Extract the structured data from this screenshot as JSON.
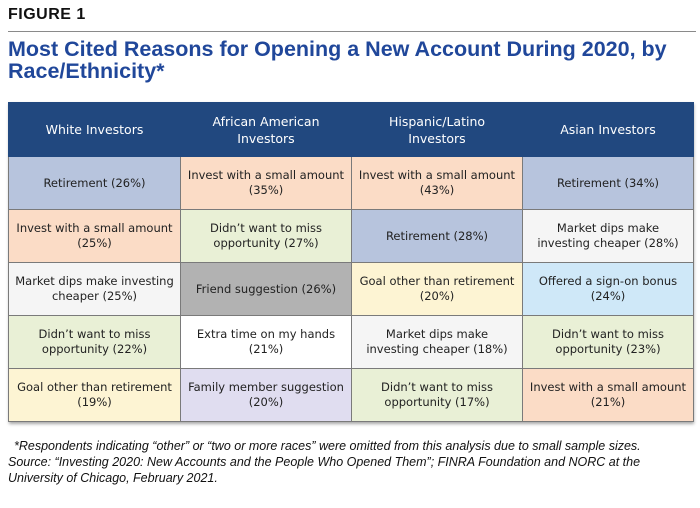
{
  "figure_label": "FIGURE 1",
  "title": "Most Cited Reasons for Opening a New Account During 2020, by Race/Ethnicity*",
  "colors": {
    "header_bg": "#21487f",
    "title": "#20479a",
    "Retirement": "#b7c4dd",
    "Invest with a small amount": "#fbdcc6",
    "Market dips make investing cheaper": "#f5f5f5",
    "Didn't want to miss opportunity": "#e9f0d6",
    "Goal other than retirement": "#fdf4d3",
    "Friend suggestion": "#b2b2b2",
    "Extra time on my hands": "#ffffff",
    "Family member suggestion": "#e0ddf0",
    "Offered a sign-on bonus": "#cfe8f8"
  },
  "chart_data": {
    "type": "table",
    "columns": [
      "White Investors",
      "African American Investors",
      "Hispanic/Latino Investors",
      "Asian Investors"
    ],
    "rows": [
      [
        {
          "reason": "Retirement",
          "pct": 26,
          "label": "Retirement (26%)"
        },
        {
          "reason": "Invest with a small amount",
          "pct": 35,
          "label": "Invest with a small amount (35%)"
        },
        {
          "reason": "Invest with a small amount",
          "pct": 43,
          "label": "Invest with a small amount (43%)"
        },
        {
          "reason": "Retirement",
          "pct": 34,
          "label": "Retirement (34%)"
        }
      ],
      [
        {
          "reason": "Invest with a small amount",
          "pct": 25,
          "label": "Invest with a small amount (25%)"
        },
        {
          "reason": "Didn't want to miss opportunity",
          "pct": 27,
          "label": "Didn’t want to miss opportunity (27%)"
        },
        {
          "reason": "Retirement",
          "pct": 28,
          "label": "Retirement (28%)"
        },
        {
          "reason": "Market dips make investing cheaper",
          "pct": 28,
          "label": "Market dips make investing cheaper (28%)"
        }
      ],
      [
        {
          "reason": "Market dips make investing cheaper",
          "pct": 25,
          "label": "Market dips make investing cheaper (25%)"
        },
        {
          "reason": "Friend suggestion",
          "pct": 26,
          "label": "Friend suggestion (26%)"
        },
        {
          "reason": "Goal other than retirement",
          "pct": 20,
          "label": "Goal other than retirement (20%)"
        },
        {
          "reason": "Offered a sign-on bonus",
          "pct": 24,
          "label": "Offered a sign-on bonus (24%)"
        }
      ],
      [
        {
          "reason": "Didn't want to miss opportunity",
          "pct": 22,
          "label": "Didn’t want to miss opportunity (22%)"
        },
        {
          "reason": "Extra time on my hands",
          "pct": 21,
          "label": "Extra time on my hands (21%)"
        },
        {
          "reason": "Market dips make investing cheaper",
          "pct": 18,
          "label": "Market dips make investing cheaper (18%)"
        },
        {
          "reason": "Didn't want to miss opportunity",
          "pct": 23,
          "label": "Didn’t want to miss opportunity (23%)"
        }
      ],
      [
        {
          "reason": "Goal other than retirement",
          "pct": 19,
          "label": "Goal other than retirement (19%)"
        },
        {
          "reason": "Family member suggestion",
          "pct": 20,
          "label": "Family member suggestion (20%)"
        },
        {
          "reason": "Didn't want to miss opportunity",
          "pct": 17,
          "label": "Didn’t want to miss opportunity (17%)"
        },
        {
          "reason": "Invest with a small amount",
          "pct": 21,
          "label": "Invest with a small amount (21%)"
        }
      ]
    ]
  },
  "footnote": "*Respondents indicating “other” or “two or more races” were omitted from this analysis due to small sample sizes.",
  "source": "Source: “Investing 2020: New Accounts and the People Who Opened Them”; FINRA Foundation and NORC at the University of Chicago, February 2021."
}
